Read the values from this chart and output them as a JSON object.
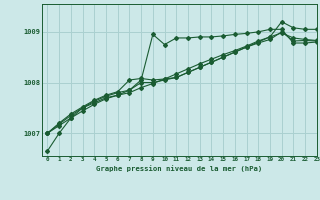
{
  "title": "Graphe pression niveau de la mer (hPa)",
  "bg_color": "#cce8e8",
  "grid_color": "#aad0d0",
  "line_color": "#1a5c32",
  "xlim": [
    -0.5,
    23
  ],
  "ylim": [
    1006.55,
    1009.55
  ],
  "yticks": [
    1007,
    1008,
    1009
  ],
  "xticks": [
    0,
    1,
    2,
    3,
    4,
    5,
    6,
    7,
    8,
    9,
    10,
    11,
    12,
    13,
    14,
    15,
    16,
    17,
    18,
    19,
    20,
    21,
    22,
    23
  ],
  "lines": [
    {
      "x": [
        0,
        1,
        2,
        3,
        4,
        5,
        6,
        7,
        8,
        9,
        10,
        11,
        12,
        13,
        14,
        15,
        16,
        17,
        18,
        19,
        20,
        21,
        22,
        23
      ],
      "y": [
        1006.65,
        1007.0,
        1007.3,
        1007.5,
        1007.6,
        1007.7,
        1007.75,
        1007.85,
        1008.05,
        1008.95,
        1008.75,
        1008.88,
        1008.88,
        1008.9,
        1008.9,
        1008.92,
        1008.95,
        1008.97,
        1009.0,
        1009.05,
        1009.05,
        1008.78,
        1008.78,
        1008.8
      ]
    },
    {
      "x": [
        0,
        1,
        2,
        3,
        4,
        5,
        6,
        7,
        8,
        9,
        10,
        11,
        12,
        13,
        14,
        15,
        16,
        17,
        18,
        19,
        20,
        21,
        22,
        23
      ],
      "y": [
        1007.0,
        1007.2,
        1007.38,
        1007.52,
        1007.65,
        1007.75,
        1007.82,
        1008.05,
        1008.08,
        1008.05,
        1008.07,
        1008.1,
        1008.2,
        1008.3,
        1008.4,
        1008.5,
        1008.6,
        1008.7,
        1008.78,
        1008.85,
        1009.0,
        1008.82,
        1008.83,
        1008.82
      ]
    },
    {
      "x": [
        0,
        1,
        2,
        3,
        4,
        5,
        6,
        7,
        8,
        9,
        10,
        11,
        12,
        13,
        14,
        15,
        16,
        17,
        18,
        19,
        20,
        21,
        22,
        23
      ],
      "y": [
        1007.0,
        1007.18,
        1007.35,
        1007.5,
        1007.63,
        1007.73,
        1007.8,
        1007.85,
        1008.0,
        1008.0,
        1008.05,
        1008.1,
        1008.2,
        1008.3,
        1008.4,
        1008.5,
        1008.6,
        1008.7,
        1008.8,
        1008.9,
        1009.2,
        1009.08,
        1009.05,
        1009.05
      ]
    },
    {
      "x": [
        0,
        1,
        2,
        3,
        4,
        5,
        6,
        7,
        8,
        9,
        10,
        11,
        12,
        13,
        14,
        15,
        16,
        17,
        18,
        19,
        20,
        21,
        22,
        23
      ],
      "y": [
        1007.0,
        1007.15,
        1007.3,
        1007.44,
        1007.57,
        1007.68,
        1007.75,
        1007.8,
        1007.9,
        1007.98,
        1008.07,
        1008.17,
        1008.27,
        1008.37,
        1008.46,
        1008.55,
        1008.63,
        1008.72,
        1008.82,
        1008.9,
        1008.98,
        1008.88,
        1008.85,
        1008.83
      ]
    }
  ]
}
